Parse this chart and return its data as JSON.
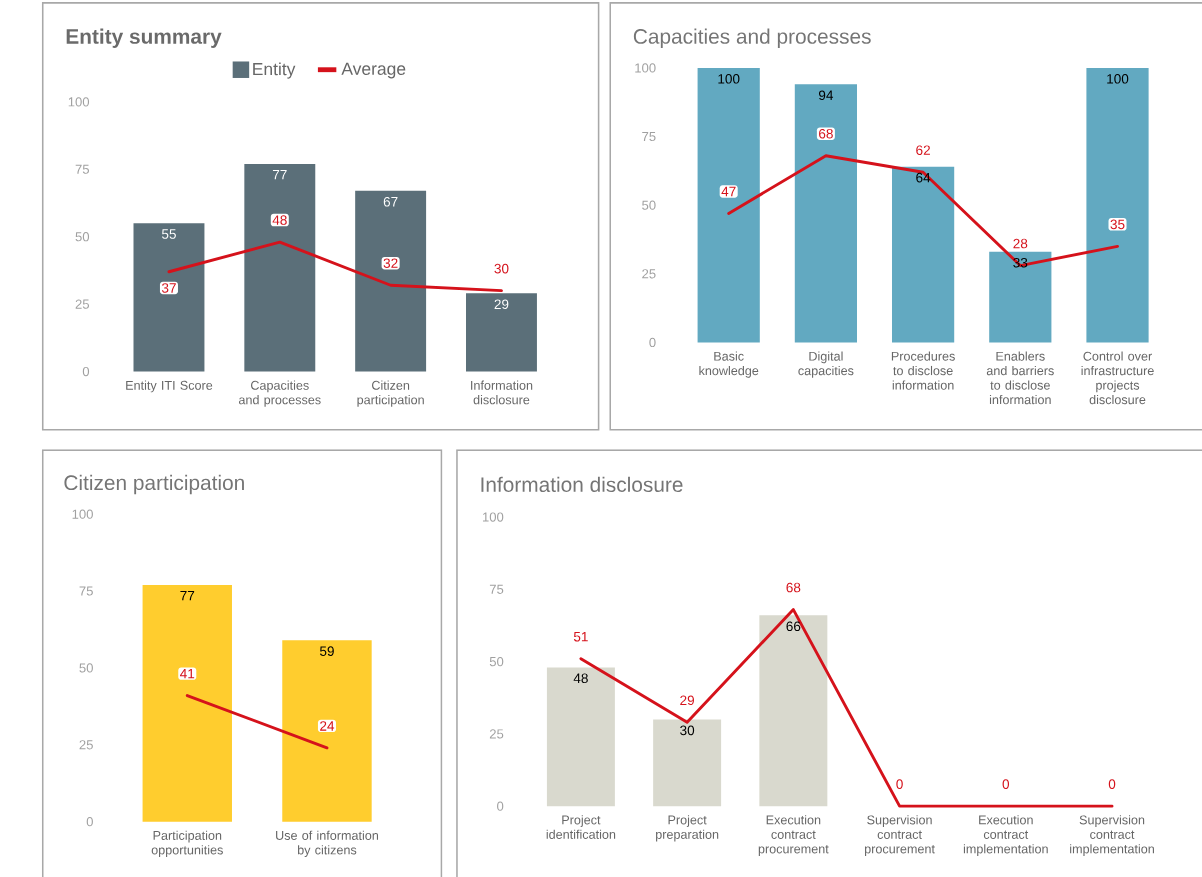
{
  "chart_data": [
    {
      "type": "bar",
      "title": "Entity summary",
      "categories": [
        "Entity ITI Score",
        "Capacities and processes",
        "Citizen participation",
        "Information disclosure"
      ],
      "series": [
        {
          "name": "Entity",
          "color": "#5b6f79",
          "values": [
            55,
            77,
            67,
            29
          ]
        },
        {
          "name": "Average",
          "type": "line",
          "color": "#d5121b",
          "values": [
            37,
            48,
            32,
            30
          ]
        }
      ],
      "ylim": [
        0,
        100
      ],
      "yticks": [
        0,
        25,
        50,
        75,
        100
      ],
      "data_labels": true,
      "legend": "top"
    },
    {
      "type": "bar",
      "title": "Capacities and processes",
      "categories": [
        "Basic knowledge",
        "Digital capacities",
        "Procedures to disclose information",
        "Enablers and barriers to disclose information",
        "Control over infrastructure projects disclosure"
      ],
      "series": [
        {
          "color": "#62a9c1",
          "values": [
            100,
            94,
            64,
            33,
            100
          ]
        },
        {
          "type": "line",
          "color": "#d5121b",
          "values": [
            47,
            68,
            62,
            28,
            35
          ]
        }
      ],
      "ylim": [
        0,
        100
      ],
      "yticks": [
        0,
        25,
        50,
        75,
        100
      ],
      "data_labels": true
    },
    {
      "type": "bar",
      "title": "Citizen participation",
      "categories": [
        "Participation opportunities",
        "Use of information by citizens"
      ],
      "series": [
        {
          "color": "#ffcd2e",
          "values": [
            77,
            59
          ]
        },
        {
          "type": "line",
          "color": "#d5121b",
          "values": [
            41,
            24
          ]
        }
      ],
      "ylim": [
        0,
        100
      ],
      "yticks": [
        0,
        25,
        50,
        75,
        100
      ],
      "data_labels": true
    },
    {
      "type": "bar",
      "title": "Information disclosure",
      "categories": [
        "Project identification",
        "Project preparation",
        "Execution contract procurement",
        "Supervision contract procurement",
        "Execution contract implementation",
        "Supervision contract implementation"
      ],
      "series": [
        {
          "color": "#d9d9ce",
          "values": [
            48,
            30,
            66,
            null,
            null,
            null
          ]
        },
        {
          "type": "line",
          "color": "#d5121b",
          "values": [
            51,
            29,
            68,
            0,
            0,
            0
          ]
        }
      ],
      "ylim": [
        0,
        100
      ],
      "yticks": [
        0,
        25,
        50,
        75,
        100
      ],
      "data_labels": true
    }
  ]
}
